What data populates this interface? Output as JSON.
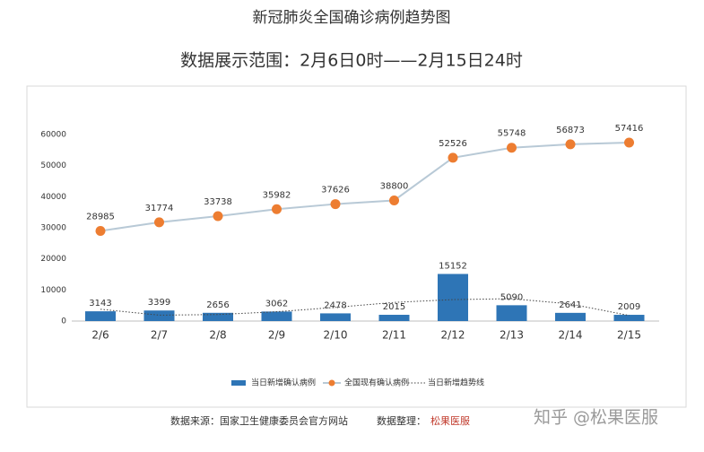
{
  "chart_data": {
    "type": "combo",
    "title": "新冠肺炎全国确诊病例趋势图",
    "subtitle": "数据展示范围：2月6日0时——2月15日24时",
    "categories": [
      "2/6",
      "2/7",
      "2/8",
      "2/9",
      "2/10",
      "2/11",
      "2/12",
      "2/13",
      "2/14",
      "2/15"
    ],
    "series": [
      {
        "name": "当日新增确认病例",
        "type": "bar",
        "color": "#2e75b6",
        "values": [
          3143,
          3399,
          2656,
          3062,
          2478,
          2015,
          15152,
          5090,
          2641,
          2009
        ]
      },
      {
        "name": "全国现有确认病例",
        "type": "line",
        "color": "#ed7d31",
        "line_color": "#b8c9d6",
        "values": [
          28985,
          31774,
          33738,
          35982,
          37626,
          38800,
          52526,
          55748,
          56873,
          57416
        ]
      },
      {
        "name": "当日新增趋势线",
        "type": "trend",
        "color": "#444",
        "values": [
          3800,
          1900,
          2100,
          3000,
          4400,
          6000,
          6900,
          7200,
          5500,
          1800
        ]
      }
    ],
    "ylim": [
      0,
      60000
    ],
    "yticks": [
      0,
      10000,
      20000,
      30000,
      40000,
      50000,
      60000
    ],
    "grid": false,
    "legend": "bottom",
    "footer": {
      "source": "数据来源：国家卫生健康委员会官方网站",
      "organizer": "数据整理：",
      "logo": "松果医服"
    },
    "watermark": "知乎 @松果医服"
  }
}
